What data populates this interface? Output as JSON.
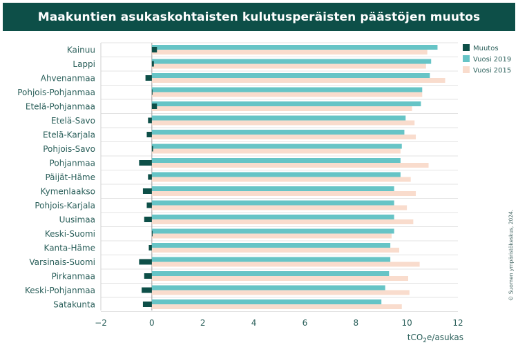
{
  "title": "Maakuntien asukaskohtaisten kulutusperäisten päästöjen muutos",
  "credit": "© Suomen ympäristökeskus, 2024.",
  "colors": {
    "header_bg": "#0d4f48",
    "muutos": "#0d4f48",
    "vuosi_2019": "#66c4c6",
    "vuosi_2015": "#f9dccd",
    "grid": "#e3e3e3"
  },
  "chart_data": {
    "type": "bar",
    "orientation": "horizontal",
    "categories": [
      "Kainuu",
      "Lappi",
      "Ahvenanmaa",
      "Pohjois-Pohjanmaa",
      "Etelä-Pohjanmaa",
      "Etelä-Savo",
      "Etelä-Karjala",
      "Pohjois-Savo",
      "Pohjanmaa",
      "Päijät-Häme",
      "Kymenlaakso",
      "Pohjois-Karjala",
      "Uusimaa",
      "Keski-Suomi",
      "Kanta-Häme",
      "Varsinais-Suomi",
      "Pirkanmaa",
      "Keski-Pohjanmaa",
      "Satakunta"
    ],
    "series": [
      {
        "name": "Muutos",
        "values": [
          0.2,
          0.08,
          -0.25,
          0.02,
          0.2,
          -0.15,
          -0.2,
          0.05,
          -0.5,
          -0.15,
          -0.35,
          -0.2,
          -0.3,
          0.03,
          -0.12,
          -0.5,
          -0.3,
          -0.4,
          -0.35
        ]
      },
      {
        "name": "Vuosi 2019",
        "values": [
          11.2,
          10.95,
          10.9,
          10.6,
          10.55,
          9.95,
          9.9,
          9.8,
          9.75,
          9.75,
          9.5,
          9.5,
          9.5,
          9.5,
          9.35,
          9.35,
          9.3,
          9.15,
          9.0
        ]
      },
      {
        "name": "Vuosi 2015",
        "values": [
          10.8,
          10.75,
          11.5,
          10.6,
          10.2,
          10.3,
          10.35,
          9.75,
          10.85,
          10.15,
          10.35,
          10.0,
          10.25,
          9.4,
          9.7,
          10.5,
          10.05,
          10.1,
          9.8
        ]
      }
    ],
    "xlim": [
      -2,
      12
    ],
    "xticks": [
      -2,
      0,
      2,
      4,
      6,
      8,
      10,
      12
    ],
    "xlabel_parts": [
      "tCO",
      "2",
      "e/asukas"
    ],
    "grid": true,
    "legend_position": "top-right"
  }
}
